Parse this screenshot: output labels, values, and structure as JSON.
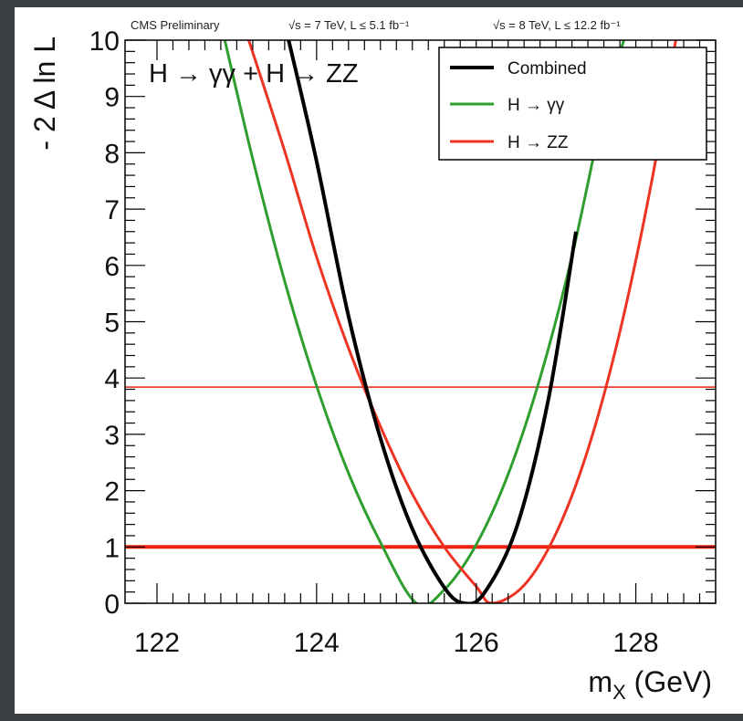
{
  "header": {
    "experiment": "CMS Preliminary",
    "lumi_7tev": "√s = 7 TeV, L ≤ 5.1 fb⁻¹",
    "lumi_8tev": "√s = 8 TeV, L ≤ 12.2 fb⁻¹"
  },
  "annotation": "H → γγ + H → ZZ",
  "colors": {
    "frame": "#000000",
    "combined": "#000000",
    "gamma_gamma": "#2e9e2e",
    "zz": "#ee3322",
    "ref_line": "#ee2211",
    "outer_background": "#3a3d42"
  },
  "chart_data": {
    "type": "line",
    "xlabel": "m_X (GeV)",
    "xlabel_main": "m",
    "xlabel_sub": "X",
    "xlabel_unit": " (GeV)",
    "ylabel": "- 2 Δ ln L",
    "xlim": [
      121.6,
      129.0
    ],
    "ylim": [
      0,
      10
    ],
    "xticks": [
      122,
      124,
      126,
      128
    ],
    "yticks": [
      0,
      1,
      2,
      3,
      4,
      5,
      6,
      7,
      8,
      9,
      10
    ],
    "grid": false,
    "legend_position": "top-right",
    "series": [
      {
        "name": "Combined",
        "color": "#000000",
        "width": 4,
        "x": [
          123.65,
          124.0,
          124.4,
          124.8,
          125.2,
          125.6,
          125.85,
          126.1,
          126.5,
          126.9,
          127.25
        ],
        "y": [
          10.0,
          7.85,
          5.1,
          2.93,
          1.32,
          0.28,
          0.0,
          0.18,
          1.32,
          3.59,
          6.6
        ]
      },
      {
        "name": "H → γγ",
        "color": "#2e9e2e",
        "width": 3,
        "x": [
          122.85,
          123.2,
          123.6,
          124.0,
          124.4,
          124.8,
          125.25,
          125.6,
          126.0,
          126.4,
          126.8,
          127.2,
          127.6,
          127.85
        ],
        "y": [
          10.0,
          7.89,
          5.72,
          3.86,
          2.31,
          1.08,
          0.0,
          0.24,
          1.04,
          2.29,
          4.0,
          6.16,
          8.77,
          10.0
        ]
      },
      {
        "name": "H → ZZ",
        "color": "#ee3322",
        "width": 3,
        "x": [
          123.15,
          123.6,
          124.0,
          124.4,
          124.8,
          125.2,
          125.6,
          126.0,
          126.2,
          126.6,
          127.0,
          127.4,
          127.8,
          128.2,
          128.5
        ],
        "y": [
          10.0,
          8.03,
          6.15,
          4.53,
          3.14,
          1.94,
          1.0,
          0.3,
          0.0,
          0.32,
          1.24,
          2.73,
          4.82,
          7.5,
          10.0
        ]
      }
    ],
    "reference_lines": [
      {
        "y": 1.0,
        "color": "#ee2211",
        "width": 4
      },
      {
        "y": 3.84,
        "color": "#ee2211",
        "width": 1.5
      }
    ]
  }
}
